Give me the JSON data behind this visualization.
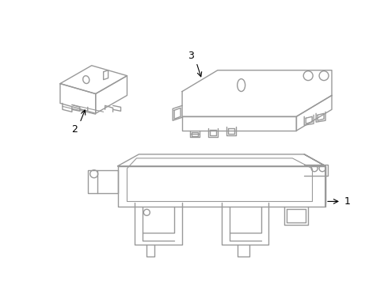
{
  "background_color": "#ffffff",
  "line_color": "#999999",
  "text_color": "#000000",
  "line_width": 1.0
}
